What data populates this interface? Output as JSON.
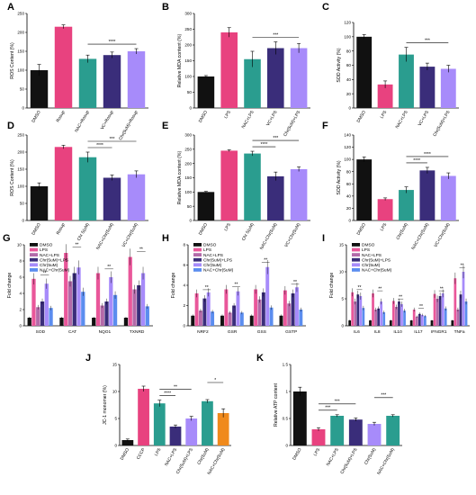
{
  "chart_data": [
    {
      "panel": "A",
      "type": "bar",
      "ylabel": "ROS Content (%)",
      "ylim": [
        0,
        250
      ],
      "yticks": [
        0,
        50,
        100,
        150,
        200,
        250
      ],
      "categories": [
        "DMSO",
        "Rosup",
        "NAC+Rosup",
        "VC+Rosup",
        "Chr(5uM)+Rosup"
      ],
      "values": [
        100,
        215,
        130,
        140,
        150
      ],
      "errors": [
        15,
        5,
        10,
        8,
        7
      ],
      "colors": [
        "#111111",
        "#e8427f",
        "#2a9d8f",
        "#3a2d7a",
        "#a78bfa"
      ],
      "sig": [
        {
          "from": 2,
          "to": 4,
          "label": "****"
        }
      ]
    },
    {
      "panel": "B",
      "type": "bar",
      "ylabel": "Relative MDA content (%)",
      "ylim": [
        0,
        300
      ],
      "yticks": [
        0,
        50,
        100,
        150,
        200,
        250,
        300
      ],
      "categories": [
        "DMSO",
        "LPS",
        "NAC+LPS",
        "VC+LPS",
        "Chr(5uM)+LPS"
      ],
      "values": [
        100,
        240,
        155,
        190,
        190
      ],
      "errors": [
        3,
        15,
        25,
        20,
        15
      ],
      "colors": [
        "#111111",
        "#e8427f",
        "#2a9d8f",
        "#3a2d7a",
        "#a78bfa"
      ],
      "sig": [
        {
          "from": 2,
          "to": 4,
          "label": "***"
        }
      ]
    },
    {
      "panel": "C",
      "type": "bar",
      "ylabel": "SOD Activity (%)",
      "ylim": [
        0,
        120
      ],
      "yticks": [
        0,
        20,
        40,
        60,
        80,
        100,
        120
      ],
      "categories": [
        "DMSO",
        "LPS",
        "NAC+LPS",
        "VC+LPS",
        "Chr(5uM)+LPS"
      ],
      "values": [
        100,
        33,
        75,
        58,
        55
      ],
      "errors": [
        3,
        5,
        10,
        5,
        5
      ],
      "colors": [
        "#111111",
        "#e8427f",
        "#2a9d8f",
        "#3a2d7a",
        "#a78bfa"
      ],
      "sig": [
        {
          "from": 2,
          "to": 4,
          "label": "***"
        }
      ]
    },
    {
      "panel": "D",
      "type": "bar",
      "ylabel": "ROS Content (%)",
      "ylim": [
        0,
        250
      ],
      "yticks": [
        0,
        50,
        100,
        150,
        200,
        250
      ],
      "categories": [
        "DMSO",
        "Rosup",
        "Chr 5(uM)",
        "NAC+Chr(5uM)",
        "VC+Chr(5uM)"
      ],
      "values": [
        100,
        215,
        185,
        125,
        135
      ],
      "errors": [
        10,
        5,
        15,
        8,
        10
      ],
      "colors": [
        "#111111",
        "#e8427f",
        "#2a9d8f",
        "#3a2d7a",
        "#a78bfa"
      ],
      "sig": [
        {
          "from": 2,
          "to": 3,
          "label": "****"
        },
        {
          "from": 2,
          "to": 4,
          "label": "***"
        }
      ]
    },
    {
      "panel": "E",
      "type": "bar",
      "ylabel": "Relative MDA content (%)",
      "ylim": [
        0,
        300
      ],
      "yticks": [
        0,
        50,
        100,
        150,
        200,
        250,
        300
      ],
      "categories": [
        "DMSO",
        "LPS",
        "Chr 5(uM)",
        "NAC+Chr(5uM)",
        "VC+Chr(5uM)"
      ],
      "values": [
        100,
        245,
        235,
        155,
        180
      ],
      "errors": [
        2,
        3,
        8,
        15,
        8
      ],
      "colors": [
        "#111111",
        "#e8427f",
        "#2a9d8f",
        "#3a2d7a",
        "#a78bfa"
      ],
      "sig": [
        {
          "from": 2,
          "to": 3,
          "label": "****"
        },
        {
          "from": 2,
          "to": 4,
          "label": "***"
        }
      ]
    },
    {
      "panel": "F",
      "type": "bar",
      "ylabel": "SOD Activity (%)",
      "ylim": [
        0,
        140
      ],
      "yticks": [
        0,
        20,
        40,
        60,
        80,
        100,
        120,
        140
      ],
      "categories": [
        "DMSO",
        "LPS",
        "Chr(5uM)",
        "NAC+Chr(5uM)",
        "VC+Chr(5uM)"
      ],
      "values": [
        100,
        35,
        50,
        82,
        73
      ],
      "errors": [
        4,
        2,
        5,
        5,
        5
      ],
      "colors": [
        "#111111",
        "#e8427f",
        "#2a9d8f",
        "#3a2d7a",
        "#a78bfa"
      ],
      "sig": [
        {
          "from": 2,
          "to": 3,
          "label": "****"
        },
        {
          "from": 2,
          "to": 4,
          "label": "****"
        }
      ]
    },
    {
      "panel": "G",
      "type": "grouped_bar",
      "ylabel": "Fold change",
      "ylim": [
        0,
        10
      ],
      "yticks": [
        0,
        2,
        4,
        6,
        8,
        10
      ],
      "categories": [
        "SOD",
        "CAT",
        "NQO1",
        "TXNRD"
      ],
      "legend": [
        "DMSO",
        "LPS",
        "NAC+LPS",
        "Chr(5uM)+LPS",
        "Chr(5uM)",
        "NAC+Chr(5uM)"
      ],
      "colors": [
        "#111111",
        "#e9579a",
        "#b36aa9",
        "#3a2d7a",
        "#a78bfa",
        "#5b8def"
      ],
      "series": [
        [
          1,
          1,
          1,
          1
        ],
        [
          5.8,
          9,
          6.5,
          8.5
        ],
        [
          2.3,
          5.5,
          2.5,
          4.5
        ],
        [
          3,
          6.5,
          3,
          5
        ],
        [
          5.2,
          7.2,
          6,
          6.5
        ],
        [
          2.2,
          4.2,
          3.8,
          2.4
        ]
      ],
      "sig_label": "**"
    },
    {
      "panel": "H",
      "type": "grouped_bar",
      "ylabel": "Fold change",
      "ylim": [
        0,
        8
      ],
      "yticks": [
        0,
        2,
        4,
        6,
        8
      ],
      "categories": [
        "NRF2",
        "GSR",
        "GSS",
        "GSTP"
      ],
      "legend": [
        "DMSO",
        "LPS",
        "NAC+LPS",
        "Chr(5uM)+LPS",
        "Chr(5uM)",
        "NAC+Chr(5uM)"
      ],
      "colors": [
        "#111111",
        "#e9579a",
        "#b36aa9",
        "#3a2d7a",
        "#a78bfa",
        "#5b8def"
      ],
      "series": [
        [
          1,
          1,
          1,
          1
        ],
        [
          3.2,
          3.6,
          3.6,
          3.5
        ],
        [
          1.5,
          1.3,
          2.6,
          2.2
        ],
        [
          2.7,
          2,
          3.3,
          3.2
        ],
        [
          3.3,
          3.4,
          5.8,
          3.8
        ],
        [
          1.4,
          1.3,
          1.8,
          1.6
        ]
      ],
      "sig_label": "**"
    },
    {
      "panel": "I",
      "type": "grouped_bar",
      "ylabel": "Fold change",
      "ylim": [
        0,
        15
      ],
      "yticks": [
        0,
        5,
        10,
        15
      ],
      "categories": [
        "IL6",
        "IL8",
        "IL10",
        "IL17",
        "IFNGR1",
        "TNFa"
      ],
      "legend": [
        "DMSO",
        "LPS",
        "NAC+LPS",
        "Chr(5uM)+LPS",
        "Chr(5uM)",
        "NAC+Chr(5uM)"
      ],
      "colors": [
        "#111111",
        "#e9579a",
        "#b36aa9",
        "#3a2d7a",
        "#a78bfa",
        "#5b8def"
      ],
      "series": [
        [
          1,
          1,
          1,
          1,
          1,
          1
        ],
        [
          6.2,
          6,
          4.6,
          3,
          5.9,
          8.8
        ],
        [
          4.5,
          3,
          3.5,
          1.7,
          5,
          3
        ],
        [
          5.8,
          3.2,
          4.5,
          2.2,
          5.5,
          5.8
        ],
        [
          5.5,
          4.5,
          4,
          2,
          6,
          10
        ],
        [
          3.3,
          2.5,
          2.8,
          1.8,
          3.2,
          4.5
        ]
      ],
      "sig_label": "**"
    },
    {
      "panel": "J",
      "type": "bar",
      "ylabel": "JC-1 monomer (%)",
      "ylim": [
        0,
        15
      ],
      "yticks": [
        0,
        5,
        10,
        15
      ],
      "categories": [
        "DMSO",
        "CCCP",
        "LPS",
        "NAC+LPS",
        "Chr(5uM)+LPS",
        "Chr(5uM)",
        "NAC+Chr(5uM)"
      ],
      "values": [
        1,
        10.5,
        7.8,
        3.5,
        5,
        8.2,
        6
      ],
      "errors": [
        0.2,
        0.5,
        0.6,
        0.3,
        0.4,
        0.3,
        0.8
      ],
      "colors": [
        "#111111",
        "#e8427f",
        "#2a9d8f",
        "#3a2d7a",
        "#a78bfa",
        "#2a9d8f",
        "#f08a1c"
      ],
      "sig": [
        {
          "from": 2,
          "to": 3,
          "label": "****"
        },
        {
          "from": 2,
          "to": 4,
          "label": "**"
        },
        {
          "from": 5,
          "to": 6,
          "label": "*"
        }
      ]
    },
    {
      "panel": "K",
      "type": "bar",
      "ylabel": "Relative ATP content",
      "ylim": [
        0,
        1.5
      ],
      "yticks": [
        0.0,
        0.5,
        1.0,
        1.5
      ],
      "categories": [
        "DMSO",
        "LPS",
        "NAC+LPS",
        "Chr(5uM)+LPS",
        "Chr(5uM)",
        "NAC+Chr(5uM)"
      ],
      "values": [
        1.0,
        0.3,
        0.55,
        0.48,
        0.4,
        0.55
      ],
      "errors": [
        0.08,
        0.03,
        0.02,
        0.03,
        0.03,
        0.02
      ],
      "colors": [
        "#111111",
        "#e8427f",
        "#2a9d8f",
        "#3a2d7a",
        "#a78bfa",
        "#2a9d8f"
      ],
      "sig": [
        {
          "from": 1,
          "to": 2,
          "label": "***"
        },
        {
          "from": 1,
          "to": 3,
          "label": "***"
        },
        {
          "from": 4,
          "to": 5,
          "label": "***"
        }
      ]
    }
  ]
}
